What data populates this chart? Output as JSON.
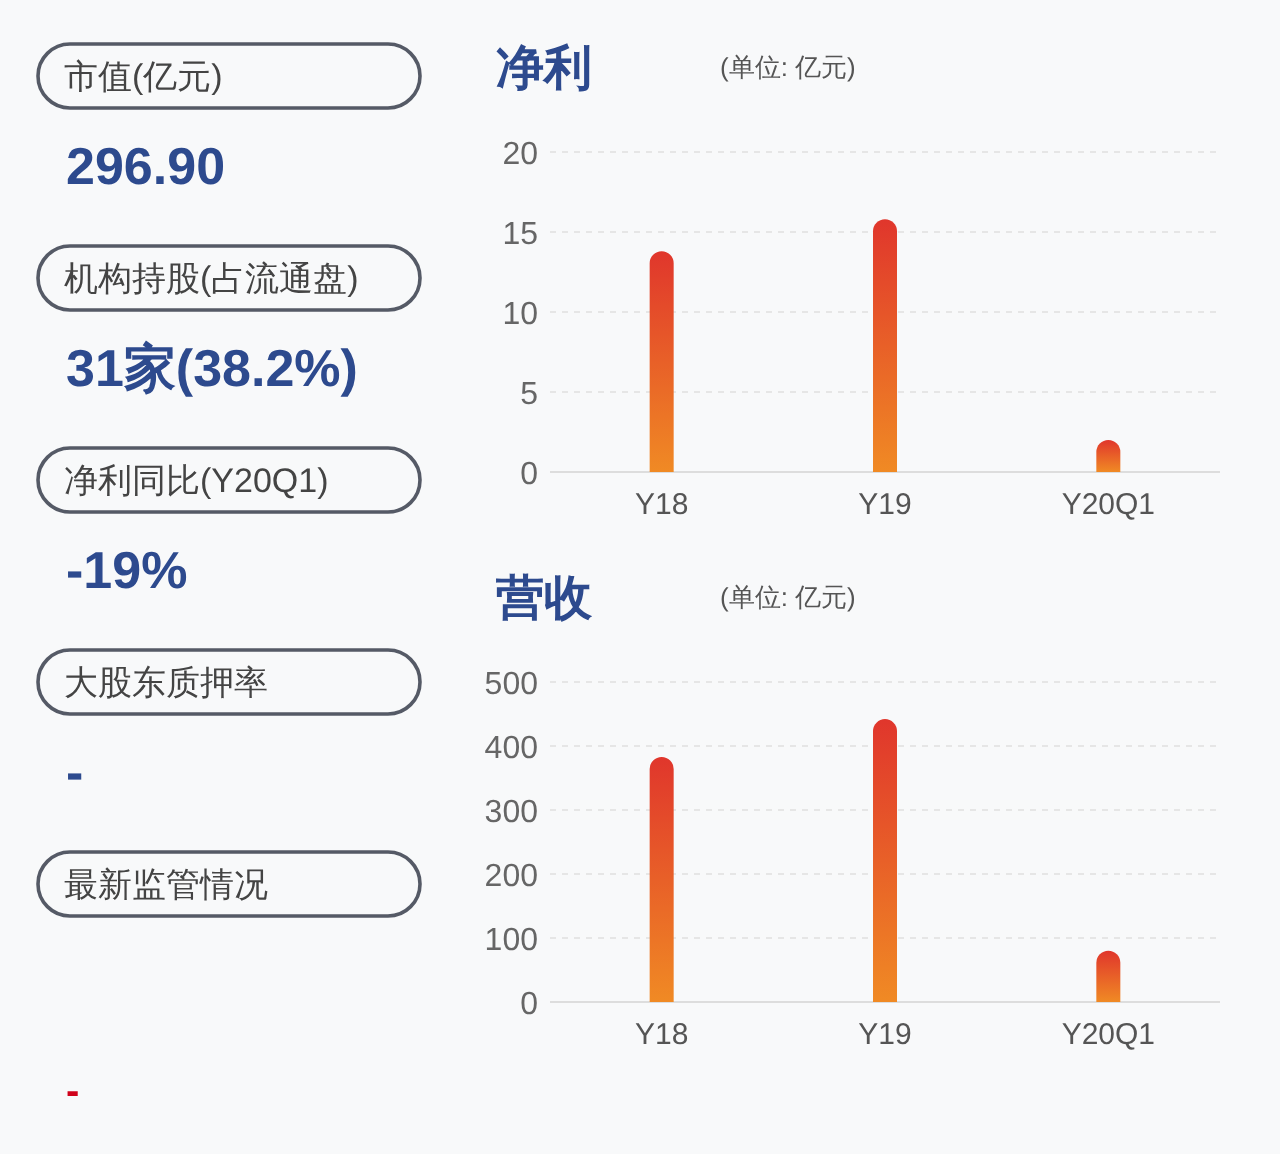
{
  "chart_data": [
    {
      "type": "other",
      "annotations": [
        "市值(亿元)",
        "296.90",
        "机构持股(占流通盘)",
        "31家(38.2%)",
        "净利同比(Y20Q1)",
        "-19%",
        "大股东质押率",
        "-",
        "最新监管情况",
        "-"
      ]
    },
    {
      "type": "bar",
      "title": "净利",
      "subtitle": "(单位: 亿元)",
      "categories": [
        "Y18",
        "Y19",
        "Y20Q1"
      ],
      "values": [
        13.8,
        15.8,
        2.0
      ],
      "color": "#e0362c",
      "ylim": [
        0,
        20
      ],
      "yticks": [
        0,
        5,
        10,
        15,
        20
      ],
      "grid": "y"
    },
    {
      "type": "bar",
      "title": "营收",
      "subtitle": "(单位: 亿元)",
      "categories": [
        "Y18",
        "Y19",
        "Y20Q1"
      ],
      "values": [
        383,
        442,
        80
      ],
      "color": "#e0362c",
      "ylim": [
        0,
        500
      ],
      "yticks": [
        0,
        100,
        200,
        300,
        400,
        500
      ],
      "grid": "y"
    }
  ]
}
